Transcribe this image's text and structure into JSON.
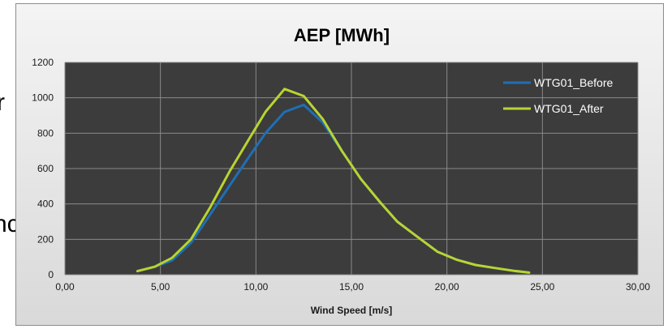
{
  "background": {
    "text_fragment_1": "r",
    "text_fragment_2": "nc"
  },
  "chart_data": {
    "type": "line",
    "title": "AEP [MWh]",
    "xlabel": "Wind Speed [m/s]",
    "ylabel": "",
    "xlim": [
      0,
      30
    ],
    "ylim": [
      0,
      1200
    ],
    "x_ticks": [
      "0,00",
      "5,00",
      "10,00",
      "15,00",
      "20,00",
      "25,00",
      "30,00"
    ],
    "y_ticks": [
      "0",
      "200",
      "400",
      "600",
      "800",
      "1000",
      "1200"
    ],
    "grid": true,
    "legend_position": "top-right",
    "plot_background": "#3c3c3c",
    "series": [
      {
        "name": "WTG01_Before",
        "color": "#1f6fb4",
        "x": [
          3.8,
          4.7,
          5.6,
          6.6,
          7.6,
          8.6,
          9.6,
          10.5,
          11.5,
          12.5,
          13.5,
          14.5,
          15.5,
          16.5,
          17.4,
          18.5,
          19.5,
          20.5,
          21.5,
          22.5,
          23.5,
          24.3
        ],
        "y": [
          20,
          45,
          80,
          180,
          340,
          500,
          660,
          800,
          920,
          960,
          860,
          700,
          540,
          410,
          300,
          210,
          130,
          85,
          55,
          38,
          22,
          12
        ]
      },
      {
        "name": "WTG01_After",
        "color": "#b8d432",
        "x": [
          3.8,
          4.7,
          5.6,
          6.6,
          7.6,
          8.6,
          9.6,
          10.5,
          11.5,
          12.5,
          13.5,
          14.5,
          15.5,
          16.5,
          17.4,
          18.5,
          19.5,
          20.5,
          21.5,
          22.5,
          23.5,
          24.3
        ],
        "y": [
          20,
          45,
          95,
          200,
          380,
          580,
          760,
          920,
          1050,
          1010,
          880,
          700,
          540,
          410,
          300,
          210,
          130,
          85,
          55,
          38,
          22,
          12
        ]
      }
    ]
  }
}
